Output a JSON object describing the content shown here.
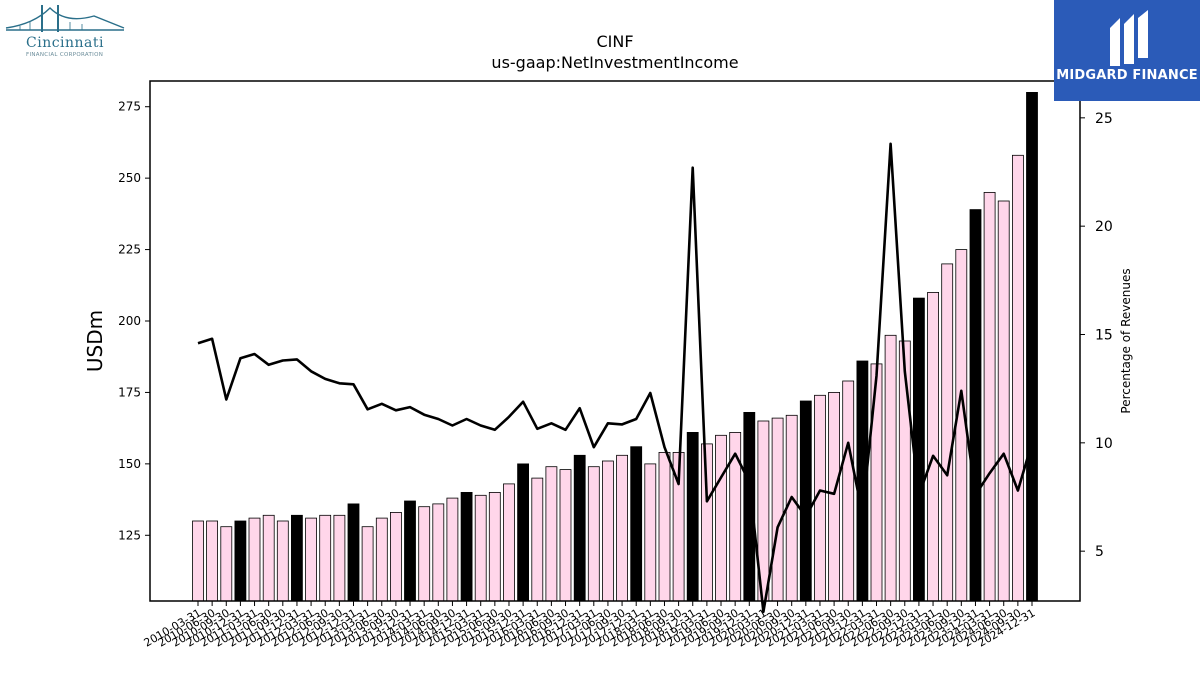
{
  "logos": {
    "left": {
      "name": "Cincinnati",
      "subtitle": "FINANCIAL CORPORATION"
    },
    "right": {
      "name": "MIDGARD FINANCE"
    }
  },
  "chart_data": {
    "type": "bar",
    "title": "CINF",
    "subtitle": "us-gaap:NetInvestmentIncome",
    "ylabel": "USDm",
    "y2label": "Percentage of Revenues",
    "ylim": [
      102,
      284
    ],
    "y2lim": [
      2.7,
      26.7
    ],
    "yticks": [
      125,
      150,
      175,
      200,
      225,
      250,
      275
    ],
    "y2ticks": [
      5,
      10,
      15,
      20,
      25
    ],
    "grid": false,
    "colors": {
      "quarter_bar": "#ffd6ea",
      "year_end_bar": "#000000",
      "bar_edge": "#000000",
      "line": "#000000"
    },
    "categories": [
      "2010-03-31",
      "2010-06-30",
      "2010-09-30",
      "2010-12-31",
      "2011-03-31",
      "2011-06-30",
      "2011-09-30",
      "2011-12-31",
      "2012-03-31",
      "2012-06-30",
      "2012-09-30",
      "2012-12-31",
      "2013-03-31",
      "2013-06-30",
      "2013-09-30",
      "2013-12-31",
      "2014-03-31",
      "2014-06-30",
      "2014-09-30",
      "2014-12-31",
      "2015-03-31",
      "2015-06-30",
      "2015-09-30",
      "2015-12-31",
      "2016-03-31",
      "2016-06-30",
      "2016-09-30",
      "2016-12-31",
      "2017-03-31",
      "2017-06-30",
      "2017-09-30",
      "2017-12-31",
      "2018-03-31",
      "2018-06-30",
      "2018-09-30",
      "2018-12-31",
      "2019-03-31",
      "2019-06-30",
      "2019-09-30",
      "2019-12-31",
      "2020-03-31",
      "2020-06-30",
      "2020-09-30",
      "2020-12-31",
      "2021-03-31",
      "2021-06-30",
      "2021-09-30",
      "2021-12-31",
      "2022-03-31",
      "2022-06-30",
      "2022-09-30",
      "2022-12-31",
      "2023-03-31",
      "2023-06-30",
      "2023-09-30",
      "2023-12-31",
      "2024-03-31",
      "2024-06-30",
      "2024-09-30",
      "2024-12-31"
    ],
    "series": [
      {
        "type": "bar",
        "values": [
          130,
          130,
          128,
          130,
          131,
          132,
          130,
          132,
          131,
          132,
          132,
          136,
          128,
          131,
          133,
          137,
          135,
          136,
          138,
          140,
          139,
          140,
          143,
          150,
          145,
          149,
          148,
          153,
          149,
          151,
          153,
          156,
          150,
          154,
          154,
          161,
          157,
          160,
          161,
          168,
          165,
          166,
          167,
          172,
          174,
          175,
          179,
          186,
          185,
          195,
          193,
          208,
          210,
          220,
          225,
          239,
          245,
          242,
          258,
          280
        ]
      },
      {
        "type": "line",
        "axis": "right",
        "values": [
          14.6,
          14.8,
          12.0,
          13.9,
          14.1,
          13.6,
          13.8,
          13.85,
          13.3,
          12.95,
          12.75,
          12.7,
          11.55,
          11.8,
          11.5,
          11.65,
          11.3,
          11.1,
          10.8,
          11.1,
          10.8,
          10.6,
          11.2,
          11.9,
          10.65,
          10.9,
          10.6,
          11.6,
          9.8,
          10.9,
          10.85,
          11.1,
          12.3,
          9.8,
          8.1,
          22.7,
          7.3,
          8.4,
          9.5,
          8.2,
          2.2,
          6.1,
          7.5,
          6.6,
          7.8,
          7.65,
          10.0,
          6.7,
          13.1,
          23.8,
          13.3,
          7.6,
          9.4,
          8.5,
          12.4,
          7.6,
          8.6,
          9.5,
          7.8,
          10.0
        ]
      }
    ]
  }
}
